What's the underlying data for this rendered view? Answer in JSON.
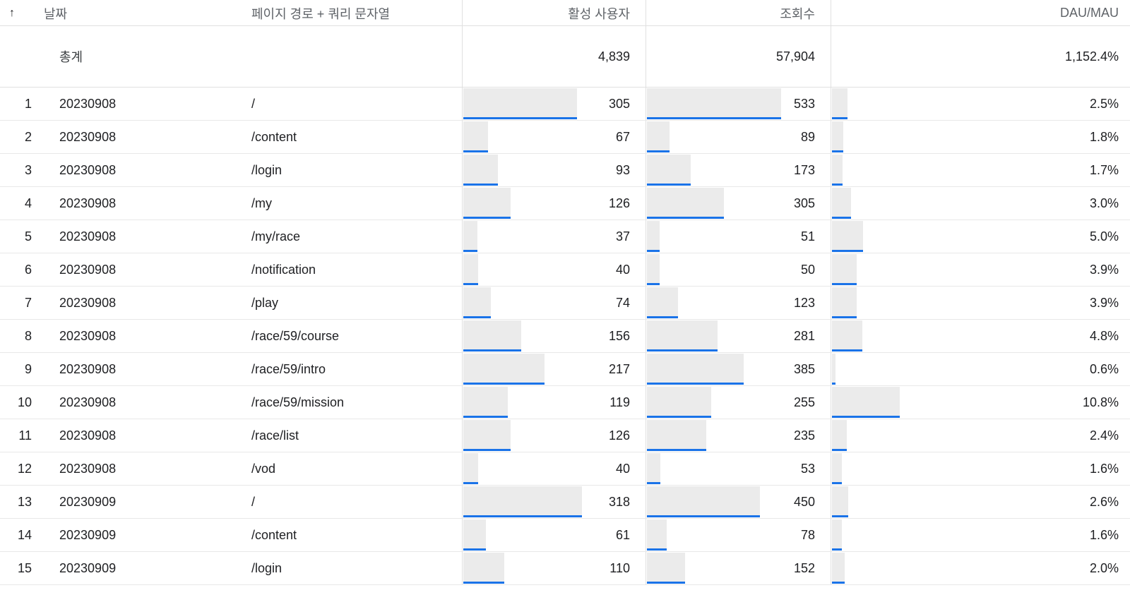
{
  "header": {
    "sort_icon": "↑",
    "date": "날짜",
    "path": "페이지 경로 + 쿼리 문자열",
    "active_users": "활성 사용자",
    "views": "조회수",
    "dau_mau": "DAU/MAU"
  },
  "totals": {
    "label": "총계",
    "active_users": "4,839",
    "views": "57,904",
    "dau_mau": "1,152.4%"
  },
  "scales": {
    "active_users_max": 318,
    "views_max": 533,
    "dau_mau_max": 10.8
  },
  "colors": {
    "bar_fill": "#ebebeb",
    "bar_accent": "#1a73e8",
    "border": "#e0e0e0"
  },
  "rows": [
    {
      "idx": "1",
      "date": "20230908",
      "path": "/",
      "active_users": "305",
      "views": "533",
      "dau_mau": "2.5%"
    },
    {
      "idx": "2",
      "date": "20230908",
      "path": "/content",
      "active_users": "67",
      "views": "89",
      "dau_mau": "1.8%"
    },
    {
      "idx": "3",
      "date": "20230908",
      "path": "/login",
      "active_users": "93",
      "views": "173",
      "dau_mau": "1.7%"
    },
    {
      "idx": "4",
      "date": "20230908",
      "path": "/my",
      "active_users": "126",
      "views": "305",
      "dau_mau": "3.0%"
    },
    {
      "idx": "5",
      "date": "20230908",
      "path": "/my/race",
      "active_users": "37",
      "views": "51",
      "dau_mau": "5.0%"
    },
    {
      "idx": "6",
      "date": "20230908",
      "path": "/notification",
      "active_users": "40",
      "views": "50",
      "dau_mau": "3.9%"
    },
    {
      "idx": "7",
      "date": "20230908",
      "path": "/play",
      "active_users": "74",
      "views": "123",
      "dau_mau": "3.9%"
    },
    {
      "idx": "8",
      "date": "20230908",
      "path": "/race/59/course",
      "active_users": "156",
      "views": "281",
      "dau_mau": "4.8%"
    },
    {
      "idx": "9",
      "date": "20230908",
      "path": "/race/59/intro",
      "active_users": "217",
      "views": "385",
      "dau_mau": "0.6%"
    },
    {
      "idx": "10",
      "date": "20230908",
      "path": "/race/59/mission",
      "active_users": "119",
      "views": "255",
      "dau_mau": "10.8%"
    },
    {
      "idx": "11",
      "date": "20230908",
      "path": "/race/list",
      "active_users": "126",
      "views": "235",
      "dau_mau": "2.4%"
    },
    {
      "idx": "12",
      "date": "20230908",
      "path": "/vod",
      "active_users": "40",
      "views": "53",
      "dau_mau": "1.6%"
    },
    {
      "idx": "13",
      "date": "20230909",
      "path": "/",
      "active_users": "318",
      "views": "450",
      "dau_mau": "2.6%"
    },
    {
      "idx": "14",
      "date": "20230909",
      "path": "/content",
      "active_users": "61",
      "views": "78",
      "dau_mau": "1.6%"
    },
    {
      "idx": "15",
      "date": "20230909",
      "path": "/login",
      "active_users": "110",
      "views": "152",
      "dau_mau": "2.0%"
    }
  ]
}
